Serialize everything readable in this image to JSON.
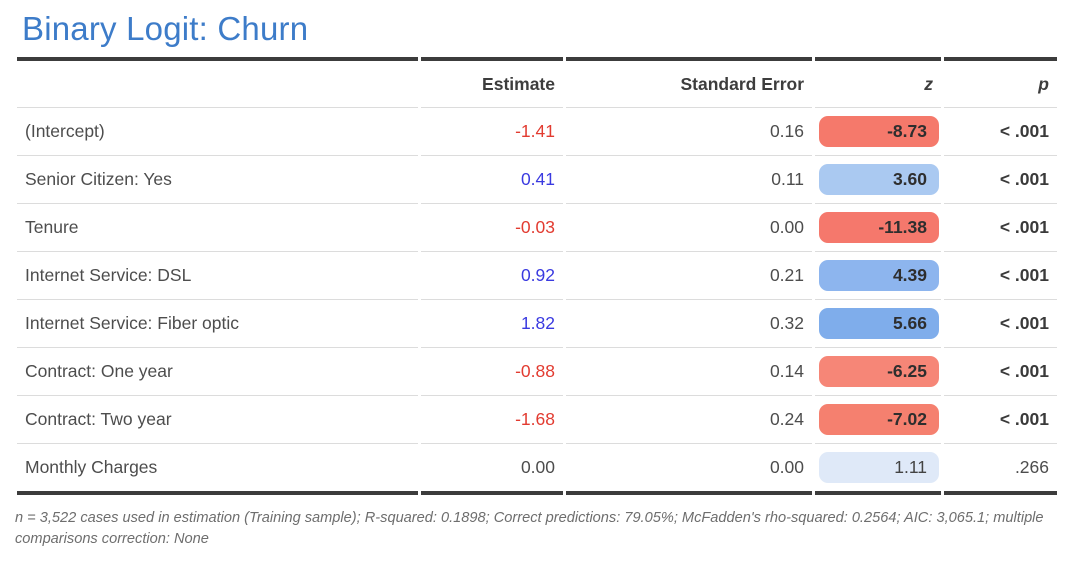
{
  "title": "Binary Logit: Churn",
  "table": {
    "columns": [
      "",
      "Estimate",
      "Standard Error",
      "z",
      "p"
    ],
    "rows": [
      {
        "label": "(Intercept)",
        "estimate": "-1.41",
        "estimate_color": "negative",
        "se": "0.16",
        "z": "-8.73",
        "z_pill": "#f5796b",
        "z_strong": true,
        "p": "< .001",
        "p_strong": true
      },
      {
        "label": "Senior Citizen: Yes",
        "estimate": "0.41",
        "estimate_color": "positive",
        "se": "0.11",
        "z": "3.60",
        "z_pill": "#aac9f1",
        "z_strong": true,
        "p": "< .001",
        "p_strong": true
      },
      {
        "label": "Tenure",
        "estimate": "-0.03",
        "estimate_color": "negative",
        "se": "0.00",
        "z": "-11.38",
        "z_pill": "#f5786c",
        "z_strong": true,
        "p": "< .001",
        "p_strong": true
      },
      {
        "label": "Internet Service: DSL",
        "estimate": "0.92",
        "estimate_color": "positive",
        "se": "0.21",
        "z": "4.39",
        "z_pill": "#8db5ee",
        "z_strong": true,
        "p": "< .001",
        "p_strong": true
      },
      {
        "label": "Internet Service: Fiber optic",
        "estimate": "1.82",
        "estimate_color": "positive",
        "se": "0.32",
        "z": "5.66",
        "z_pill": "#7fadeb",
        "z_strong": true,
        "p": "< .001",
        "p_strong": true
      },
      {
        "label": "Contract: One year",
        "estimate": "-0.88",
        "estimate_color": "negative",
        "se": "0.14",
        "z": "-6.25",
        "z_pill": "#f68677",
        "z_strong": true,
        "p": "< .001",
        "p_strong": true
      },
      {
        "label": "Contract: Two year",
        "estimate": "-1.68",
        "estimate_color": "negative",
        "se": "0.24",
        "z": "-7.02",
        "z_pill": "#f5806f",
        "z_strong": true,
        "p": "< .001",
        "p_strong": true
      },
      {
        "label": "Monthly Charges",
        "estimate": "0.00",
        "estimate_color": "neutral",
        "se": "0.00",
        "z": "1.11",
        "z_pill": "#dfe9f8",
        "z_strong": false,
        "p": ".266",
        "p_strong": false
      }
    ]
  },
  "footnote": "n = 3,522 cases used in estimation (Training sample); R-squared: 0.1898; Correct predictions: 79.05%; McFadden's rho-squared: 0.2564; AIC: 3,065.1; multiple comparisons correction: None",
  "colors": {
    "title": "#3d7cc9",
    "negative_text": "#e23b30",
    "positive_text": "#3a3ae0",
    "neutral_text": "#4d4d4d",
    "border_heavy": "#3c3c3c",
    "border_light": "#dcdcdc",
    "pill_negative_strong": "#f5796b",
    "pill_positive_strong": "#7fadeb",
    "pill_positive_weak": "#dfe9f8"
  },
  "chart_data": {
    "type": "table",
    "title": "Binary Logit: Churn",
    "columns": [
      "Estimate",
      "Standard Error",
      "z",
      "p"
    ],
    "categories": [
      "(Intercept)",
      "Senior Citizen: Yes",
      "Tenure",
      "Internet Service: DSL",
      "Internet Service: Fiber optic",
      "Contract: One year",
      "Contract: Two year",
      "Monthly Charges"
    ],
    "series": [
      {
        "name": "Estimate",
        "values": [
          -1.41,
          0.41,
          -0.03,
          0.92,
          1.82,
          -0.88,
          -1.68,
          0.0
        ]
      },
      {
        "name": "Standard Error",
        "values": [
          0.16,
          0.11,
          0.0,
          0.21,
          0.32,
          0.14,
          0.24,
          0.0
        ]
      },
      {
        "name": "z",
        "values": [
          -8.73,
          3.6,
          -11.38,
          4.39,
          5.66,
          -6.25,
          -7.02,
          1.11
        ]
      },
      {
        "name": "p",
        "values": [
          "< .001",
          "< .001",
          "< .001",
          "< .001",
          "< .001",
          "< .001",
          "< .001",
          ".266"
        ]
      }
    ],
    "footnote": "n = 3,522 cases used in estimation (Training sample); R-squared: 0.1898; Correct predictions: 79.05%; McFadden's rho-squared: 0.2564; AIC: 3,065.1; multiple comparisons correction: None"
  }
}
